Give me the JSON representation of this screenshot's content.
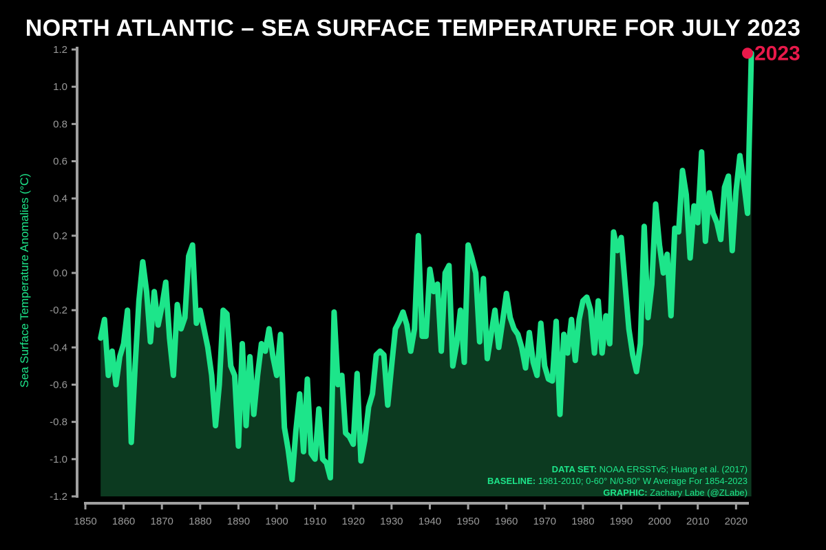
{
  "chart_data": {
    "type": "line",
    "title": "NORTH ATLANTIC – SEA SURFACE TEMPERATURE FOR JULY 2023",
    "ylabel": "Sea Surface Temperature Anomalies (°C)",
    "xlabel": "",
    "xlim": [
      1850,
      2023
    ],
    "ylim": [
      -1.2,
      1.2
    ],
    "x_ticks": [
      1850,
      1860,
      1870,
      1880,
      1890,
      1900,
      1910,
      1920,
      1930,
      1940,
      1950,
      1960,
      1970,
      1980,
      1990,
      2000,
      2010,
      2020
    ],
    "y_ticks": [
      -1.2,
      -1.0,
      -0.8,
      -0.6,
      -0.4,
      -0.2,
      0.0,
      0.2,
      0.4,
      0.6,
      0.8,
      1.0,
      1.2
    ],
    "y_tick_labels": [
      "-1.2",
      "-1.0",
      "-0.8",
      "-0.6",
      "-0.4",
      "-0.2",
      "0.0",
      "0.2",
      "0.4",
      "0.6",
      "0.8",
      "1.0",
      "1.2"
    ],
    "grid": false,
    "x_start": 1854,
    "series": [
      {
        "color": "#1de58a",
        "fill_color": "#0c3a20",
        "values": [
          -0.35,
          -0.25,
          -0.55,
          -0.42,
          -0.6,
          -0.45,
          -0.38,
          -0.2,
          -0.91,
          -0.5,
          -0.15,
          0.06,
          -0.1,
          -0.37,
          -0.1,
          -0.28,
          -0.18,
          -0.05,
          -0.35,
          -0.55,
          -0.17,
          -0.3,
          -0.24,
          0.09,
          0.15,
          -0.27,
          -0.2,
          -0.3,
          -0.4,
          -0.55,
          -0.82,
          -0.6,
          -0.2,
          -0.22,
          -0.5,
          -0.55,
          -0.93,
          -0.38,
          -0.82,
          -0.45,
          -0.76,
          -0.55,
          -0.38,
          -0.42,
          -0.3,
          -0.45,
          -0.55,
          -0.33,
          -0.83,
          -0.95,
          -1.11,
          -0.85,
          -0.65,
          -0.96,
          -0.57,
          -0.97,
          -1.0,
          -0.73,
          -1.0,
          -1.02,
          -1.1,
          -0.21,
          -0.6,
          -0.55,
          -0.86,
          -0.88,
          -0.92,
          -0.54,
          -1.01,
          -0.9,
          -0.72,
          -0.65,
          -0.44,
          -0.42,
          -0.44,
          -0.71,
          -0.5,
          -0.3,
          -0.26,
          -0.21,
          -0.28,
          -0.42,
          -0.3,
          0.2,
          -0.34,
          -0.34,
          0.02,
          -0.1,
          -0.06,
          -0.42,
          0.0,
          0.04,
          -0.5,
          -0.38,
          -0.2,
          -0.48,
          0.15,
          0.08,
          0.0,
          -0.37,
          -0.03,
          -0.46,
          -0.33,
          -0.2,
          -0.4,
          -0.26,
          -0.11,
          -0.24,
          -0.3,
          -0.33,
          -0.4,
          -0.51,
          -0.32,
          -0.48,
          -0.55,
          -0.27,
          -0.5,
          -0.57,
          -0.58,
          -0.26,
          -0.76,
          -0.33,
          -0.43,
          -0.25,
          -0.47,
          -0.25,
          -0.15,
          -0.13,
          -0.2,
          -0.43,
          -0.15,
          -0.43,
          -0.23,
          -0.38,
          0.22,
          0.12,
          0.19,
          -0.06,
          -0.3,
          -0.44,
          -0.53,
          -0.38,
          0.25,
          -0.24,
          -0.06,
          0.37,
          0.15,
          0.0,
          0.1,
          -0.23,
          0.24,
          0.22,
          0.55,
          0.42,
          0.08,
          0.36,
          0.27,
          0.65,
          0.17,
          0.43,
          0.32,
          0.27,
          0.18,
          0.46,
          0.52,
          0.12,
          0.44,
          0.63,
          0.49,
          0.32,
          1.18
        ]
      }
    ],
    "highlight": {
      "label": "2023",
      "x": 2023,
      "y": 1.18,
      "color": "#e8194a"
    },
    "annotations": [
      {
        "key": "DATA SET:",
        "text": "NOAA ERSSTv5; Huang et al. (2017)"
      },
      {
        "key": "BASELINE:",
        "text": "1981-2010; 0-60° N/0-80° W Average For 1854-2023"
      },
      {
        "key": "GRAPHIC:",
        "text": "Zachary Labe (@ZLabe)"
      }
    ]
  }
}
